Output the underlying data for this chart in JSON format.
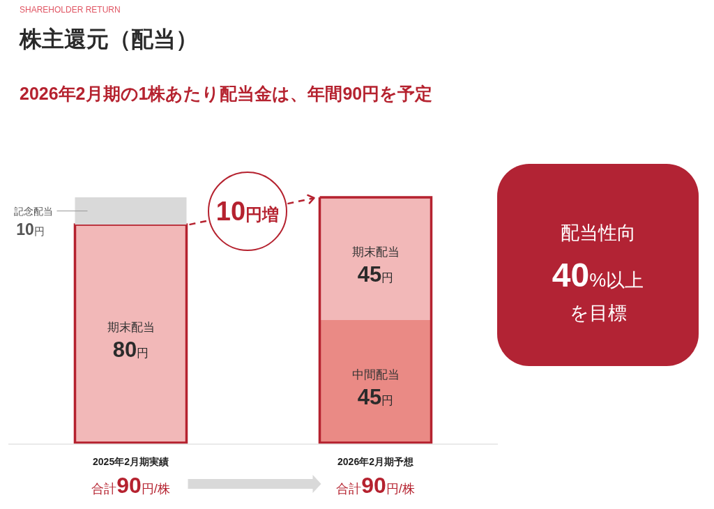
{
  "chart_data": [
    {
      "type": "bar",
      "title": "株主還元（配当）",
      "subtitle": "2026年2月期の1株あたり配当金は、年間90円を予定",
      "annotations": [
        "SHAREHOLDER RETURN",
        "10円増"
      ],
      "categories": [
        "2025年2月期実績",
        "2026年2月期予想"
      ],
      "stacked": true,
      "series": [
        {
          "name": "中間配当",
          "color": "#ea8a85",
          "values": [
            null,
            45
          ],
          "value_labels": [
            null,
            "45円"
          ]
        },
        {
          "name": "期末配当",
          "color": "#f2b8b8",
          "values": [
            80,
            45
          ],
          "value_labels": [
            "80円",
            "45円"
          ]
        },
        {
          "name": "記念配当",
          "color": "#d9d9d9",
          "values": [
            10,
            null
          ],
          "value_labels": [
            "10円",
            null
          ]
        }
      ],
      "totals": [
        "合計90円/株",
        "合計90円/株"
      ]
    },
    {
      "type": "other",
      "annotations": [
        "配当性向",
        "40%以上",
        "を目標"
      ]
    }
  ]
}
